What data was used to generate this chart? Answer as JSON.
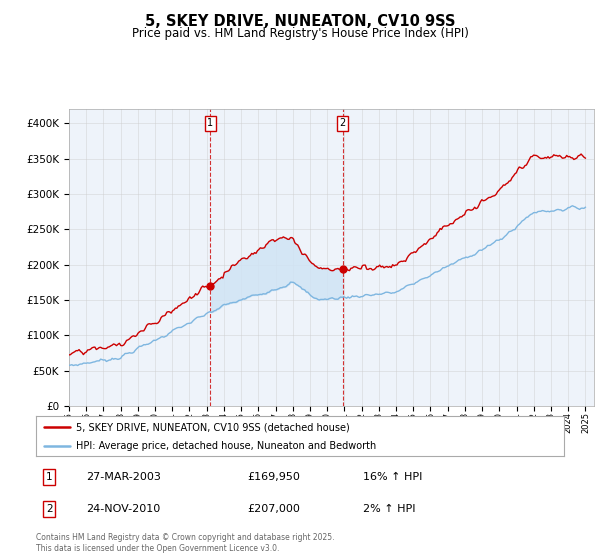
{
  "title": "5, SKEY DRIVE, NUNEATON, CV10 9SS",
  "subtitle": "Price paid vs. HM Land Registry's House Price Index (HPI)",
  "ylim": [
    0,
    420000
  ],
  "yticks": [
    0,
    50000,
    100000,
    150000,
    200000,
    250000,
    300000,
    350000,
    400000
  ],
  "ytick_labels": [
    "£0",
    "£50K",
    "£100K",
    "£150K",
    "£200K",
    "£250K",
    "£300K",
    "£350K",
    "£400K"
  ],
  "x_start_year": 1995,
  "x_end_year": 2025,
  "sale1_x": 2003.21,
  "sale1_price": 169950,
  "sale1_date": "27-MAR-2003",
  "sale1_hpi_pct": "16%",
  "sale2_x": 2010.9,
  "sale2_price": 207000,
  "sale2_date": "24-NOV-2010",
  "sale2_hpi_pct": "2%",
  "legend_line1": "5, SKEY DRIVE, NUNEATON, CV10 9SS (detached house)",
  "legend_line2": "HPI: Average price, detached house, Nuneaton and Bedworth",
  "footer": "Contains HM Land Registry data © Crown copyright and database right 2025.\nThis data is licensed under the Open Government Licence v3.0.",
  "hpi_color": "#7EB6E0",
  "price_color": "#CC0000",
  "vline_color": "#CC0000",
  "fill_color": "#D0E4F5",
  "bg_color": "#EEF3FA",
  "plot_bg": "#FFFFFF",
  "grid_color": "#CCCCCC",
  "marker_color": "#CC0000"
}
